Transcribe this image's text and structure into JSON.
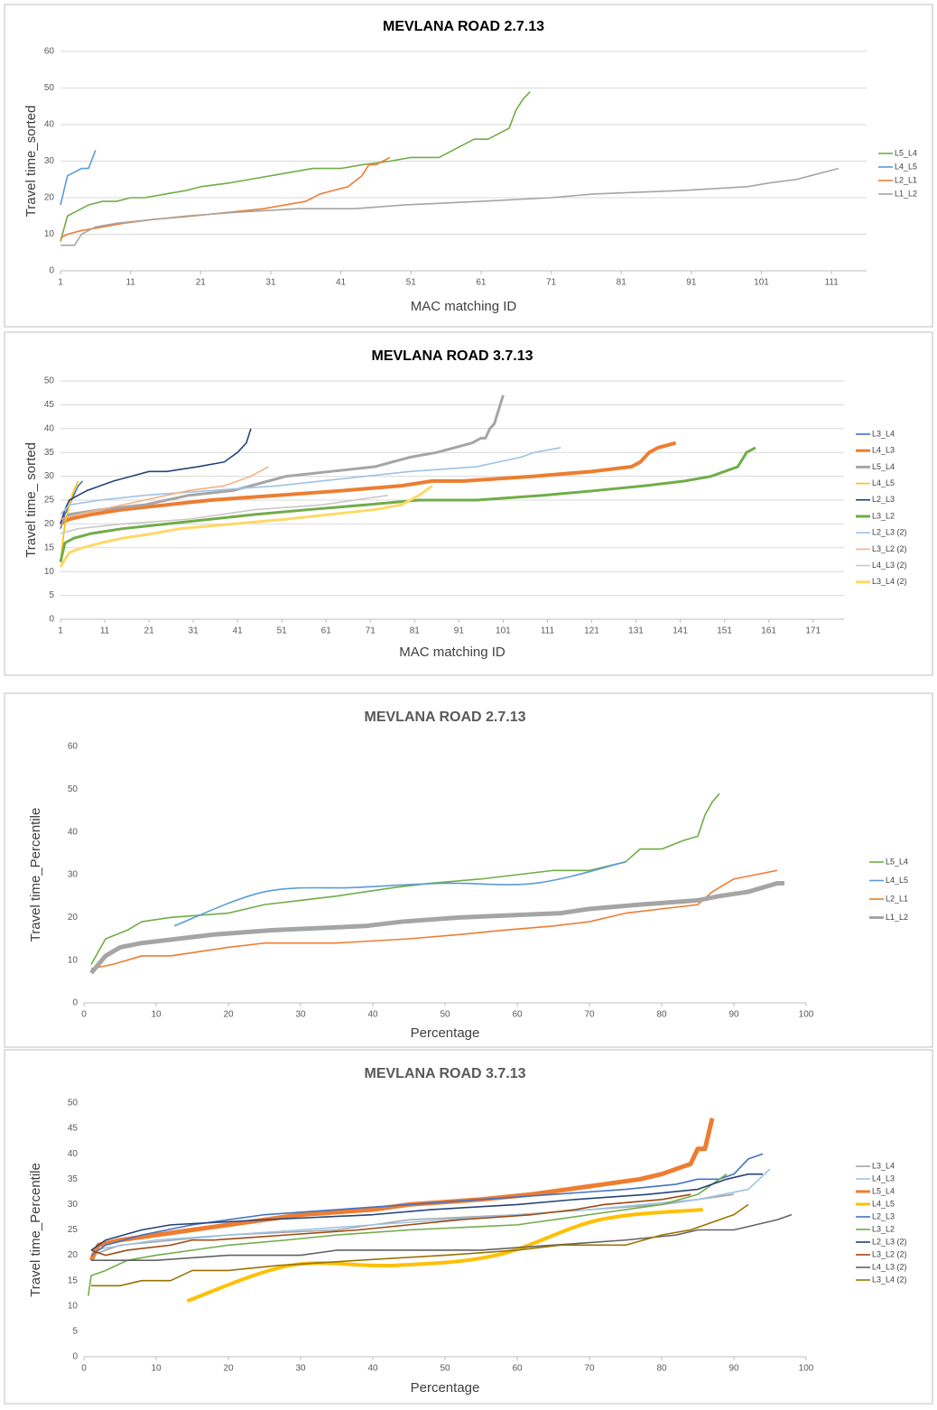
{
  "chart_data": [
    {
      "type": "line",
      "title": "MEVLANA ROAD 2.7.13",
      "x_label": "MAC matching ID",
      "y_label": "Travel time_sorted",
      "xlim": [
        1,
        116
      ],
      "xticks": [
        1,
        11,
        21,
        31,
        41,
        51,
        61,
        71,
        81,
        91,
        101,
        111
      ],
      "ylim": [
        0,
        60
      ],
      "yticks": [
        0,
        10,
        20,
        30,
        40,
        50,
        60
      ],
      "grid": true,
      "series": [
        {
          "name": "L5_L4",
          "color": "#70ad47",
          "x": [
            1,
            2,
            3,
            5,
            7,
            9,
            11,
            13,
            16,
            19,
            21,
            25,
            28,
            31,
            34,
            37,
            41,
            44,
            48,
            51,
            55,
            58,
            60,
            62,
            64,
            65,
            66,
            67,
            68
          ],
          "values": [
            8,
            15,
            16,
            18,
            19,
            19,
            20,
            20,
            21,
            22,
            23,
            24,
            25,
            26,
            27,
            28,
            28,
            29,
            30,
            31,
            31,
            34,
            36,
            36,
            38,
            39,
            44,
            47,
            49
          ]
        },
        {
          "name": "L4_L5",
          "color": "#5b9bd5",
          "x": [
            1,
            2,
            3,
            4,
            5,
            6
          ],
          "values": [
            18,
            26,
            27,
            28,
            28,
            33
          ]
        },
        {
          "name": "L2_L1",
          "color": "#ed7d31",
          "x": [
            1,
            2,
            4,
            7,
            10,
            14,
            20,
            25,
            30,
            33,
            36,
            38,
            40,
            42,
            44,
            45,
            46,
            47,
            48
          ],
          "values": [
            9,
            10,
            11,
            12,
            13,
            14,
            15,
            16,
            17,
            18,
            19,
            21,
            22,
            23,
            26,
            29,
            29,
            30,
            31
          ]
        },
        {
          "name": "L1_L2",
          "color": "#a5a5a5",
          "x": [
            1,
            3,
            4,
            6,
            9,
            14,
            19,
            26,
            35,
            43,
            50,
            61,
            71,
            77,
            90,
            99,
            102,
            106,
            108,
            110,
            112
          ],
          "values": [
            7,
            7,
            10,
            12,
            13,
            14,
            15,
            16,
            17,
            17,
            18,
            19,
            20,
            21,
            22,
            23,
            24,
            25,
            26,
            27,
            28
          ]
        }
      ]
    },
    {
      "type": "line",
      "title": "MEVLANA ROAD 3.7.13",
      "x_label": "MAC matching ID",
      "y_label": "Travel time_ sorted",
      "xlim": [
        1,
        178
      ],
      "xticks": [
        1,
        11,
        21,
        31,
        41,
        51,
        61,
        71,
        81,
        91,
        101,
        111,
        121,
        131,
        141,
        151,
        161,
        171
      ],
      "ylim": [
        0,
        50
      ],
      "yticks": [
        0,
        5,
        10,
        15,
        20,
        25,
        30,
        35,
        40,
        45,
        50
      ],
      "grid": true,
      "series": [
        {
          "name": "L3_L4",
          "color": "#4472c4",
          "x": [
            1,
            2,
            3,
            4,
            5,
            6
          ],
          "values": [
            19,
            22,
            24,
            26,
            28,
            29
          ]
        },
        {
          "name": "L4_L3",
          "color": "#ed7d31",
          "line_width": 4,
          "x": [
            1,
            3,
            8,
            15,
            25,
            35,
            50,
            65,
            78,
            85,
            92,
            108,
            121,
            130,
            132,
            134,
            136,
            140
          ],
          "values": [
            20,
            21,
            22,
            23,
            24,
            25,
            26,
            27,
            28,
            29,
            29,
            30,
            31,
            32,
            33,
            35,
            36,
            37
          ]
        },
        {
          "name": "L5_L4",
          "color": "#a5a5a5",
          "line_width": 3,
          "x": [
            1,
            3,
            10,
            20,
            30,
            40,
            48,
            52,
            62,
            72,
            76,
            80,
            86,
            90,
            94,
            96,
            97,
            98,
            99,
            100,
            101
          ],
          "values": [
            20,
            22,
            23,
            24,
            26,
            27,
            29,
            30,
            31,
            32,
            33,
            34,
            35,
            36,
            37,
            38,
            38,
            40,
            41,
            44,
            47
          ]
        },
        {
          "name": "L4_L5",
          "color": "#ffc000",
          "x": [
            1,
            2,
            3,
            4,
            5
          ],
          "values": [
            12,
            20,
            24,
            27,
            29
          ]
        },
        {
          "name": "L2_L3",
          "color": "#264478",
          "x": [
            1,
            2,
            3,
            5,
            7,
            10,
            13,
            17,
            21,
            25,
            32,
            38,
            41,
            43,
            44
          ],
          "values": [
            20,
            23,
            25,
            26,
            27,
            28,
            29,
            30,
            31,
            31,
            32,
            33,
            35,
            37,
            40
          ]
        },
        {
          "name": "L3_L2",
          "color": "#70ad47",
          "line_width": 3,
          "x": [
            1,
            2,
            4,
            8,
            15,
            25,
            35,
            45,
            57,
            70,
            82,
            95,
            110,
            122,
            133,
            142,
            148,
            151,
            154,
            156,
            158
          ],
          "values": [
            12,
            16,
            17,
            18,
            19,
            20,
            21,
            22,
            23,
            24,
            25,
            25,
            26,
            27,
            28,
            29,
            30,
            31,
            32,
            35,
            36
          ]
        },
        {
          "name": "L2_L3 (2)",
          "color": "#9dc3e6",
          "x": [
            1,
            3,
            10,
            20,
            35,
            50,
            70,
            80,
            95,
            100,
            105,
            108,
            114
          ],
          "values": [
            22,
            24,
            25,
            26,
            27,
            28,
            30,
            31,
            32,
            33,
            34,
            35,
            36
          ]
        },
        {
          "name": "L3_L2 (2)",
          "color": "#f4b183",
          "x": [
            1,
            5,
            10,
            20,
            30,
            38,
            44,
            48
          ],
          "values": [
            21,
            22,
            23,
            25,
            27,
            28,
            30,
            32
          ]
        },
        {
          "name": "L4_L3 (2)",
          "color": "#c9c9c9",
          "x": [
            1,
            5,
            15,
            30,
            45,
            60,
            75
          ],
          "values": [
            18,
            19,
            20,
            21,
            23,
            24,
            26
          ]
        },
        {
          "name": "L3_L4 (2)",
          "color": "#ffd966",
          "line_width": 3,
          "x": [
            1,
            3,
            6,
            10,
            15,
            22,
            28,
            40,
            52,
            62,
            72,
            78,
            82,
            85
          ],
          "values": [
            11,
            14,
            15,
            16,
            17,
            18,
            19,
            20,
            21,
            22,
            23,
            24,
            26,
            28
          ]
        }
      ]
    },
    {
      "type": "line",
      "title": "MEVLANA ROAD 2.7.13",
      "x_label": "Percentage",
      "y_label": "Travel time_Percentile",
      "xlim": [
        0,
        100
      ],
      "xticks": [
        0,
        10,
        20,
        30,
        40,
        50,
        60,
        70,
        80,
        90,
        100
      ],
      "ylim": [
        0,
        60
      ],
      "yticks": [
        0,
        10,
        20,
        30,
        40,
        50,
        60
      ],
      "grid": false,
      "series": [
        {
          "name": "L5_L4",
          "color": "#70ad47",
          "x": [
            1,
            3,
            6,
            8,
            12,
            20,
            25,
            30,
            35,
            43,
            48,
            55,
            60,
            65,
            70,
            75,
            77,
            80,
            83,
            85,
            86,
            87,
            88
          ],
          "values": [
            9,
            15,
            17,
            19,
            20,
            21,
            23,
            24,
            25,
            27,
            28,
            29,
            30,
            31,
            31,
            33,
            36,
            36,
            38,
            39,
            44,
            47,
            49
          ]
        },
        {
          "name": "L4_L5",
          "color": "#5b9bd5",
          "smooth": true,
          "x": [
            12.5,
            25,
            37.5,
            50,
            62.5,
            75
          ],
          "values": [
            18,
            26,
            27,
            28,
            28,
            33
          ]
        },
        {
          "name": "L2_L1",
          "color": "#ed7d31",
          "x": [
            1,
            4,
            8,
            12,
            16,
            20,
            25,
            35,
            45,
            52,
            58,
            65,
            70,
            75,
            80,
            85,
            87,
            90,
            93,
            96
          ],
          "values": [
            8,
            9,
            11,
            11,
            12,
            13,
            14,
            14,
            15,
            16,
            17,
            18,
            19,
            21,
            22,
            23,
            26,
            29,
            30,
            31
          ]
        },
        {
          "name": "L1_L2",
          "color": "#a5a5a5",
          "line_width": 5,
          "x": [
            1,
            3,
            5,
            8,
            13,
            18,
            26,
            39,
            44,
            52,
            66,
            70,
            77,
            85,
            88,
            92,
            94,
            96,
            97
          ],
          "values": [
            7,
            11,
            13,
            14,
            15,
            16,
            17,
            18,
            19,
            20,
            21,
            22,
            23,
            24,
            25,
            26,
            27,
            28,
            28
          ]
        }
      ]
    },
    {
      "type": "line",
      "title": "MEVLANA ROAD 3.7.13",
      "x_label": "Percentage",
      "y_label": "Travel time_Percentile",
      "xlim": [
        0,
        100
      ],
      "xticks": [
        0,
        10,
        20,
        30,
        40,
        50,
        60,
        70,
        80,
        90,
        100
      ],
      "ylim": [
        0,
        50
      ],
      "yticks": [
        0,
        5,
        10,
        15,
        20,
        25,
        30,
        35,
        40,
        45,
        50
      ],
      "grid": false,
      "series": [
        {
          "name": "L3_L4",
          "color": "#a5a5a5",
          "x": [
            1,
            5,
            20,
            35,
            45,
            60,
            70,
            80,
            85,
            90
          ],
          "values": [
            20,
            22,
            24,
            25,
            27,
            28,
            29,
            30,
            31,
            32
          ]
        },
        {
          "name": "L4_L3",
          "color": "#9dc3e6",
          "x": [
            1,
            10,
            30,
            50,
            70,
            85,
            92,
            95
          ],
          "values": [
            21,
            23,
            25,
            27,
            29,
            31,
            33,
            37
          ]
        },
        {
          "name": "L5_L4",
          "color": "#ed7d31",
          "line_width": 5,
          "x": [
            1,
            2,
            5,
            10,
            20,
            30,
            40,
            45,
            55,
            62,
            67,
            72,
            77,
            80,
            82,
            84,
            85,
            86,
            87
          ],
          "values": [
            19,
            22,
            23,
            24,
            26,
            28,
            29,
            30,
            31,
            32,
            33,
            34,
            35,
            36,
            37,
            38,
            41,
            41,
            47
          ]
        },
        {
          "name": "L4_L5",
          "color": "#ffc000",
          "line_width": 4,
          "smooth": true,
          "x": [
            14.3,
            28.6,
            42.9,
            57.1,
            71.4,
            85.7
          ],
          "values": [
            11,
            18,
            18,
            20,
            27,
            29
          ]
        },
        {
          "name": "L2_L3",
          "color": "#4472c4",
          "x": [
            1,
            3,
            8,
            15,
            25,
            35,
            45,
            55,
            65,
            75,
            82,
            85,
            88,
            90,
            92,
            94
          ],
          "values": [
            20,
            22,
            24,
            26,
            28,
            29,
            30,
            31,
            32,
            33,
            34,
            35,
            35,
            36,
            39,
            40
          ]
        },
        {
          "name": "L3_L2",
          "color": "#70ad47",
          "x": [
            0.6,
            1,
            3,
            6,
            10,
            15,
            20,
            28,
            35,
            45,
            60,
            70,
            80,
            85,
            87,
            89
          ],
          "values": [
            12,
            16,
            17,
            19,
            20,
            21,
            22,
            23,
            24,
            25,
            26,
            28,
            30,
            32,
            34,
            36
          ]
        },
        {
          "name": "L2_L3 (2)",
          "color": "#264478",
          "x": [
            1,
            3,
            8,
            12,
            25,
            40,
            48,
            60,
            68,
            78,
            85,
            87,
            89,
            92,
            94
          ],
          "values": [
            21,
            23,
            25,
            26,
            27,
            28,
            29,
            30,
            31,
            32,
            33,
            34,
            35,
            36,
            36
          ]
        },
        {
          "name": "L3_L2 (2)",
          "color": "#9e480e",
          "x": [
            1,
            3,
            6,
            12,
            15,
            18,
            28,
            38,
            45,
            52,
            62,
            68,
            72,
            80,
            84
          ],
          "values": [
            21,
            20,
            21,
            22,
            23,
            23,
            24,
            25,
            26,
            27,
            28,
            29,
            30,
            31,
            32
          ]
        },
        {
          "name": "L4_L3 (2)",
          "color": "#636363",
          "x": [
            1,
            5,
            10,
            20,
            30,
            35,
            55,
            65,
            75,
            82,
            85,
            90,
            93,
            96,
            98
          ],
          "values": [
            19,
            19,
            19,
            20,
            20,
            21,
            21,
            22,
            23,
            24,
            25,
            25,
            26,
            27,
            28
          ]
        },
        {
          "name": "L3_L4 (2)",
          "color": "#997300",
          "x": [
            1,
            5,
            8,
            12,
            15,
            20,
            27,
            38,
            50,
            60,
            66,
            75,
            80,
            84,
            86,
            88,
            90,
            92
          ],
          "values": [
            14,
            14,
            15,
            15,
            17,
            17,
            18,
            19,
            20,
            21,
            22,
            22,
            24,
            25,
            26,
            27,
            28,
            30
          ]
        }
      ]
    }
  ]
}
